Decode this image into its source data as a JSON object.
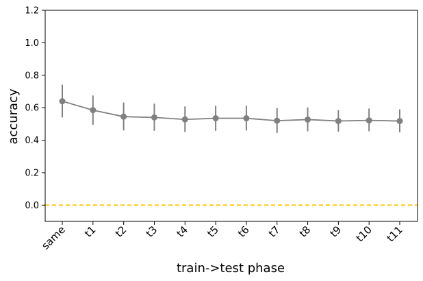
{
  "chart_data": {
    "type": "line",
    "title": "",
    "xlabel": "train->test phase",
    "ylabel": "accuracy",
    "categories": [
      "same",
      "t1",
      "t2",
      "t3",
      "t4",
      "t5",
      "t6",
      "t7",
      "t8",
      "t9",
      "t10",
      "t11"
    ],
    "series": [
      {
        "values": [
          0.64,
          0.585,
          0.545,
          0.54,
          0.528,
          0.535,
          0.535,
          0.52,
          0.527,
          0.518,
          0.522,
          0.518
        ],
        "error_low": [
          0.54,
          0.495,
          0.46,
          0.458,
          0.45,
          0.458,
          0.46,
          0.445,
          0.455,
          0.452,
          0.455,
          0.448
        ],
        "error_high": [
          0.742,
          0.675,
          0.632,
          0.625,
          0.608,
          0.612,
          0.612,
          0.598,
          0.602,
          0.585,
          0.595,
          0.59
        ],
        "color": "#808080"
      }
    ],
    "reference_line": {
      "y": 0.0,
      "color": "#FFC400",
      "style": "dashed"
    },
    "ylim": [
      -0.1,
      1.2
    ],
    "yticks": [
      "0.0",
      "0.2",
      "0.4",
      "0.6",
      "0.8",
      "1.0",
      "1.2"
    ],
    "ytick_values": [
      0.0,
      0.2,
      0.4,
      0.6,
      0.8,
      1.0,
      1.2
    ],
    "grid": false,
    "legend": "none"
  }
}
